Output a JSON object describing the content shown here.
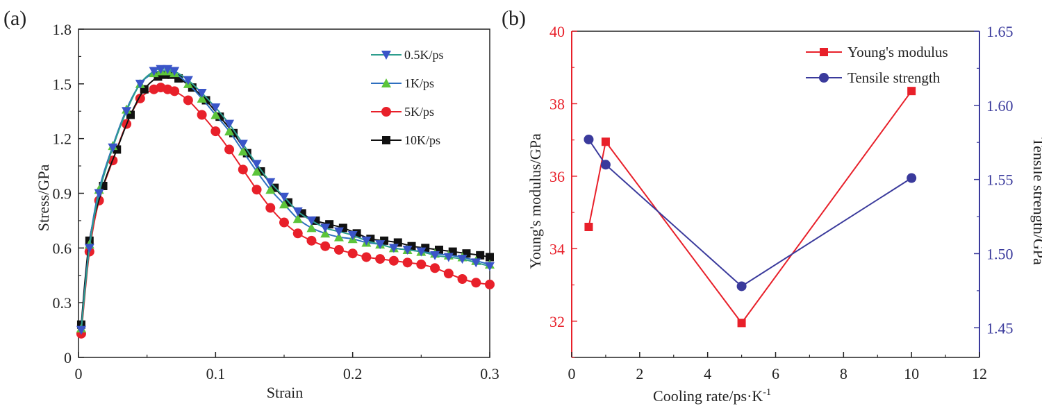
{
  "chart_data": [
    {
      "panel_label": "(a)",
      "type": "line",
      "title": "",
      "xlabel": "Strain",
      "ylabel": "Stress/GPa",
      "xlim": [
        0,
        0.3
      ],
      "ylim": [
        0,
        1.8
      ],
      "xticks": [
        "0",
        "0.1",
        "0.2",
        "0.3"
      ],
      "yticks": [
        "0",
        "0.3",
        "0.6",
        "0.9",
        "1.2",
        "1.5",
        "1.8"
      ],
      "legend_position": "top-right",
      "grid": false,
      "series": [
        {
          "name": "0.5K/ps",
          "color": "#2e9e8e",
          "marker": "triangle-down",
          "marker_color": "#3a55c8",
          "x": [
            0.002,
            0.008,
            0.015,
            0.025,
            0.035,
            0.045,
            0.055,
            0.06,
            0.065,
            0.07,
            0.08,
            0.09,
            0.1,
            0.11,
            0.12,
            0.13,
            0.14,
            0.15,
            0.16,
            0.17,
            0.18,
            0.19,
            0.2,
            0.21,
            0.22,
            0.23,
            0.24,
            0.25,
            0.26,
            0.27,
            0.28,
            0.29,
            0.3
          ],
          "y": [
            0.15,
            0.6,
            0.9,
            1.15,
            1.35,
            1.5,
            1.57,
            1.58,
            1.58,
            1.57,
            1.52,
            1.45,
            1.37,
            1.28,
            1.17,
            1.06,
            0.96,
            0.88,
            0.8,
            0.75,
            0.71,
            0.69,
            0.67,
            0.64,
            0.62,
            0.6,
            0.59,
            0.58,
            0.56,
            0.55,
            0.54,
            0.52,
            0.5
          ]
        },
        {
          "name": "1K/ps",
          "color": "#2e6fbf",
          "marker": "triangle-up",
          "marker_color": "#5cc43a",
          "x": [
            0.002,
            0.008,
            0.015,
            0.025,
            0.035,
            0.045,
            0.055,
            0.06,
            0.065,
            0.07,
            0.08,
            0.09,
            0.1,
            0.11,
            0.12,
            0.13,
            0.14,
            0.15,
            0.16,
            0.17,
            0.18,
            0.19,
            0.2,
            0.21,
            0.22,
            0.23,
            0.24,
            0.25,
            0.26,
            0.27,
            0.28,
            0.29,
            0.3
          ],
          "y": [
            0.16,
            0.62,
            0.92,
            1.16,
            1.36,
            1.5,
            1.56,
            1.57,
            1.57,
            1.56,
            1.5,
            1.42,
            1.33,
            1.24,
            1.13,
            1.02,
            0.92,
            0.84,
            0.76,
            0.71,
            0.68,
            0.66,
            0.65,
            0.63,
            0.62,
            0.6,
            0.59,
            0.58,
            0.57,
            0.56,
            0.55,
            0.53,
            0.51
          ]
        },
        {
          "name": "5K/ps",
          "color": "#e8202a",
          "marker": "circle",
          "marker_color": "#e8202a",
          "x": [
            0.002,
            0.008,
            0.015,
            0.025,
            0.035,
            0.045,
            0.055,
            0.06,
            0.065,
            0.07,
            0.08,
            0.09,
            0.1,
            0.11,
            0.12,
            0.13,
            0.14,
            0.15,
            0.16,
            0.17,
            0.18,
            0.19,
            0.2,
            0.21,
            0.22,
            0.23,
            0.24,
            0.25,
            0.26,
            0.27,
            0.28,
            0.29,
            0.3
          ],
          "y": [
            0.13,
            0.58,
            0.86,
            1.08,
            1.28,
            1.42,
            1.47,
            1.48,
            1.47,
            1.46,
            1.41,
            1.33,
            1.24,
            1.14,
            1.03,
            0.92,
            0.82,
            0.74,
            0.68,
            0.64,
            0.61,
            0.59,
            0.57,
            0.55,
            0.54,
            0.53,
            0.52,
            0.51,
            0.49,
            0.46,
            0.43,
            0.41,
            0.4
          ]
        },
        {
          "name": "10K/ps",
          "color": "#111111",
          "marker": "square",
          "marker_color": "#111111",
          "x": [
            0.002,
            0.008,
            0.018,
            0.028,
            0.038,
            0.048,
            0.058,
            0.063,
            0.068,
            0.073,
            0.083,
            0.093,
            0.103,
            0.113,
            0.123,
            0.133,
            0.143,
            0.153,
            0.163,
            0.173,
            0.183,
            0.193,
            0.203,
            0.213,
            0.223,
            0.233,
            0.243,
            0.253,
            0.263,
            0.273,
            0.283,
            0.293,
            0.3
          ],
          "y": [
            0.18,
            0.64,
            0.94,
            1.14,
            1.33,
            1.47,
            1.54,
            1.55,
            1.55,
            1.53,
            1.48,
            1.41,
            1.32,
            1.23,
            1.12,
            1.02,
            0.93,
            0.85,
            0.79,
            0.75,
            0.73,
            0.71,
            0.68,
            0.65,
            0.64,
            0.63,
            0.61,
            0.6,
            0.59,
            0.58,
            0.57,
            0.56,
            0.55
          ]
        }
      ]
    },
    {
      "panel_label": "(b)",
      "type": "line",
      "title": "",
      "xlabel": "Cooling rate/ps·K",
      "xlabel_superscript": "-1",
      "ylabel_left": "Young's modulus/GPa",
      "ylabel_right": "Tensile strength/GPa",
      "xlim": [
        0,
        12
      ],
      "ylim_left": [
        31,
        40
      ],
      "ylim_right": [
        1.43,
        1.65
      ],
      "xticks": [
        "0",
        "2",
        "4",
        "6",
        "8",
        "10",
        "12"
      ],
      "yticks_left": [
        "32",
        "34",
        "36",
        "38",
        "40"
      ],
      "yticks_right": [
        "1.45",
        "1.50",
        "1.55",
        "1.60",
        "1.65"
      ],
      "left_axis_color": "#e8202a",
      "right_axis_color": "#3a3a9c",
      "legend_position": "top-right",
      "grid": false,
      "series": [
        {
          "name": "Young's modulus",
          "axis": "left",
          "color": "#e8202a",
          "marker": "square",
          "x": [
            0.5,
            1,
            5,
            10
          ],
          "y": [
            34.6,
            36.95,
            31.95,
            38.35
          ]
        },
        {
          "name": "Tensile strength",
          "axis": "right",
          "color": "#3a3a9c",
          "marker": "circle",
          "x": [
            0.5,
            1,
            5,
            10
          ],
          "y": [
            1.577,
            1.56,
            1.478,
            1.551
          ]
        }
      ]
    }
  ]
}
